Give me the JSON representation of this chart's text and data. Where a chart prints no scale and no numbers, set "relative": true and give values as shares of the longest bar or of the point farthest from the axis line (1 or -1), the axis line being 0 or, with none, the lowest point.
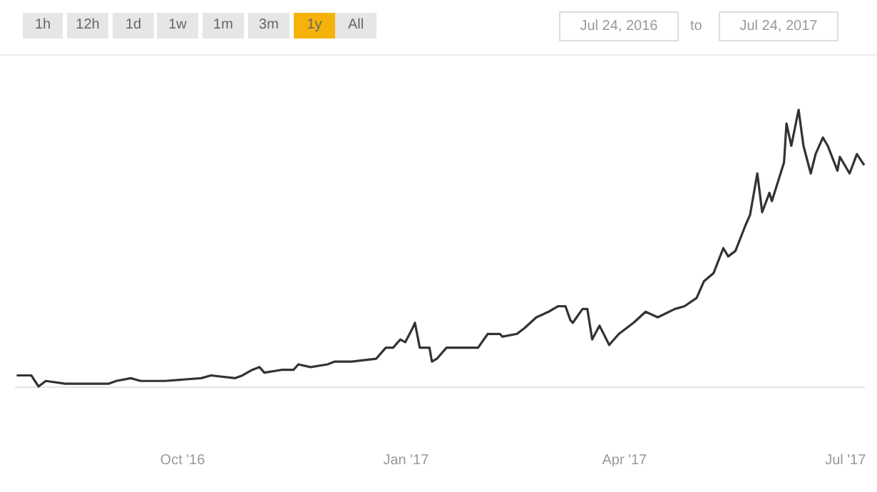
{
  "chart_data": {
    "type": "line",
    "relative": true,
    "annotations": [
      "1h",
      "12h",
      "1d",
      "1w",
      "1m",
      "3m",
      "1y",
      "All",
      "Jul 24, 2016",
      "to",
      "Jul 24, 2017"
    ],
    "xlim": [
      "2016-07-24",
      "2017-07-09"
    ],
    "xticks": [
      {
        "value": "2016-10-01",
        "label": "Oct '16"
      },
      {
        "value": "2017-01-01",
        "label": "Jan '17"
      },
      {
        "value": "2017-04-01",
        "label": "Apr '17"
      },
      {
        "value": "2017-07-01",
        "label": "Jul '17"
      }
    ],
    "x": [
      "2016-07-25",
      "2016-07-31",
      "2016-08-03",
      "2016-08-06",
      "2016-08-14",
      "2016-09-01",
      "2016-09-04",
      "2016-09-10",
      "2016-09-14",
      "2016-09-24",
      "2016-10-09",
      "2016-10-13",
      "2016-10-23",
      "2016-10-26",
      "2016-10-30",
      "2016-11-02",
      "2016-11-04",
      "2016-11-11",
      "2016-11-16",
      "2016-11-18",
      "2016-11-23",
      "2016-11-30",
      "2016-12-03",
      "2016-12-10",
      "2016-12-20",
      "2016-12-21",
      "2016-12-24",
      "2016-12-27",
      "2016-12-30",
      "2017-01-01",
      "2017-01-04",
      "2017-01-05",
      "2017-01-07",
      "2017-01-11",
      "2017-01-12",
      "2017-01-14",
      "2017-01-18",
      "2017-01-23",
      "2017-01-26",
      "2017-01-31",
      "2017-02-04",
      "2017-02-09",
      "2017-02-10",
      "2017-02-16",
      "2017-02-19",
      "2017-02-24",
      "2017-03-01",
      "2017-03-05",
      "2017-03-08",
      "2017-03-10",
      "2017-03-11",
      "2017-03-15",
      "2017-03-17",
      "2017-03-19",
      "2017-03-22",
      "2017-03-26",
      "2017-03-30",
      "2017-04-05",
      "2017-04-10",
      "2017-04-15",
      "2017-04-22",
      "2017-04-26",
      "2017-05-01",
      "2017-05-04",
      "2017-05-08",
      "2017-05-12",
      "2017-05-14",
      "2017-05-17",
      "2017-05-21",
      "2017-05-23",
      "2017-05-26",
      "2017-05-28",
      "2017-05-31",
      "2017-06-01",
      "2017-06-06",
      "2017-06-07",
      "2017-06-09",
      "2017-06-12",
      "2017-06-14",
      "2017-06-17",
      "2017-06-19",
      "2017-06-22",
      "2017-06-24",
      "2017-06-28",
      "2017-06-29",
      "2017-07-03",
      "2017-07-06",
      "2017-07-09"
    ],
    "series": [
      {
        "color": "#333333",
        "values": [
          0.04,
          0.04,
          0,
          0.02,
          0.01,
          0.01,
          0.02,
          0.03,
          0.02,
          0.02,
          0.03,
          0.04,
          0.03,
          0.04,
          0.06,
          0.07,
          0.05,
          0.06,
          0.06,
          0.08,
          0.07,
          0.08,
          0.09,
          0.09,
          0.1,
          0.11,
          0.14,
          0.14,
          0.17,
          0.16,
          0.21,
          0.23,
          0.14,
          0.14,
          0.09,
          0.1,
          0.14,
          0.14,
          0.14,
          0.14,
          0.19,
          0.19,
          0.18,
          0.19,
          0.21,
          0.25,
          0.27,
          0.29,
          0.29,
          0.24,
          0.23,
          0.28,
          0.28,
          0.17,
          0.22,
          0.15,
          0.19,
          0.23,
          0.27,
          0.25,
          0.28,
          0.29,
          0.32,
          0.38,
          0.41,
          0.5,
          0.47,
          0.49,
          0.58,
          0.62,
          0.77,
          0.63,
          0.7,
          0.67,
          0.81,
          0.95,
          0.87,
          1.0,
          0.87,
          0.77,
          0.84,
          0.9,
          0.87,
          0.78,
          0.83,
          0.77,
          0.84,
          0.8
        ]
      }
    ]
  }
}
